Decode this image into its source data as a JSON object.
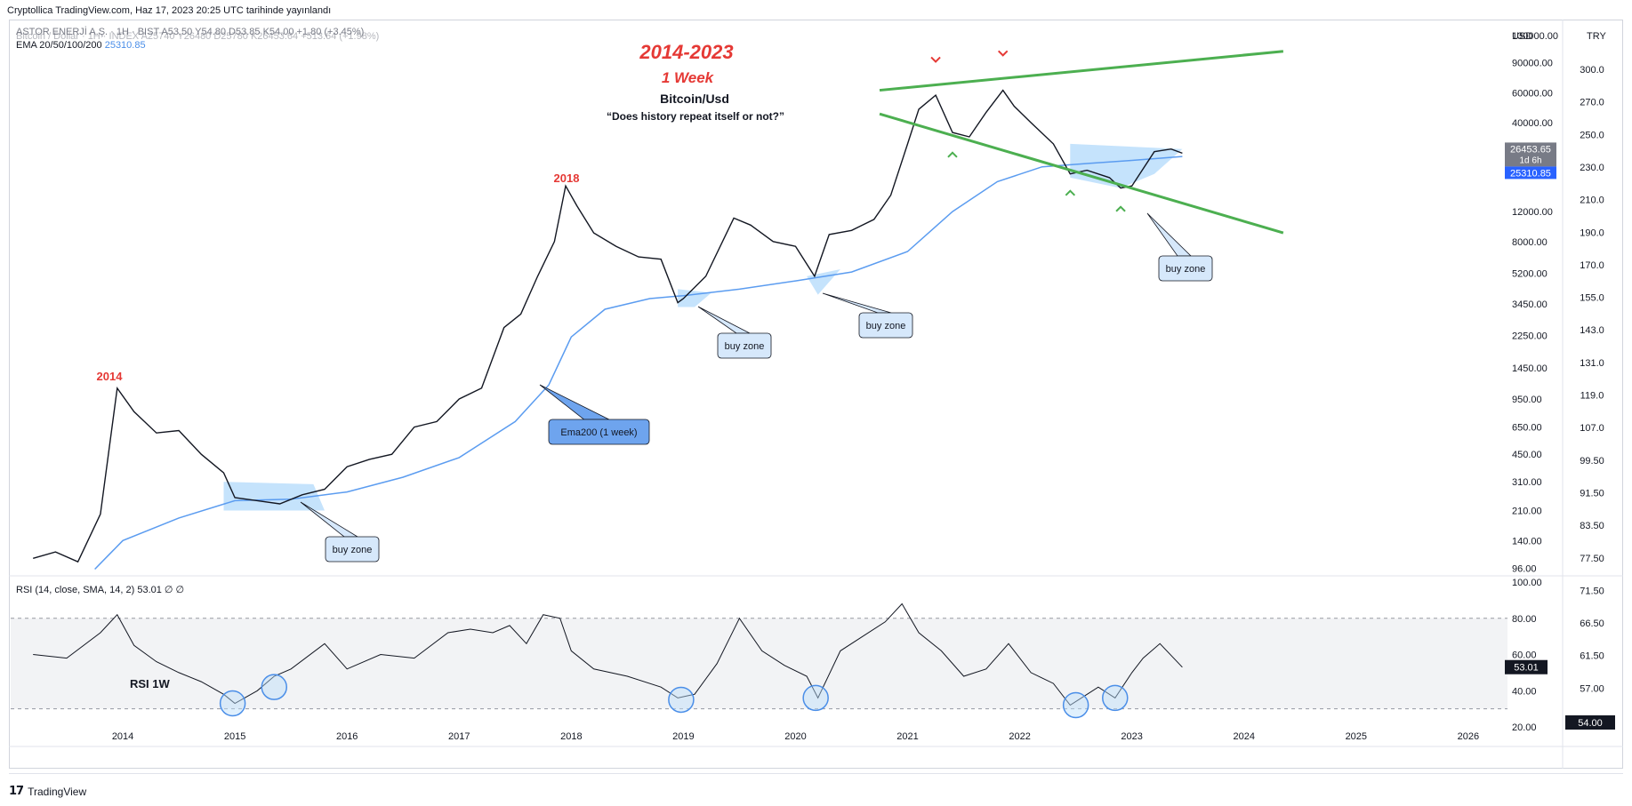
{
  "header": {
    "published": "Cryptollica TradingView.com, Haz 17, 2023 20:25 UTC tarihinde yayınlandı",
    "symbol_line": "ASTOR ENERJİ A.Ş. · 1H · BIST  A53.50  Y54.80  D53.85  K54.00  +1.80 (+3.45%)",
    "symbol_line_overlay": "Bitcoin / Dollar · 1H · INDEX  A25740  Y26480  D25780  K26453.64  +513.64 (+1.98%)",
    "ema_label": "EMA 20/50/100/200",
    "ema_value": "25310.85"
  },
  "annotations": {
    "title_years": "2014-2023",
    "title_period": "1 Week",
    "title_pair": "Bitcoin/Usd",
    "title_question": "“Does history repeat itself or not?”",
    "peak_2014": "2014",
    "peak_2018": "2018",
    "ema_callout": "Ema200 (1 week)",
    "buy_zone": "buy zone",
    "rsi_label": "RSI 1W"
  },
  "rsi_legend": "RSI (14, close, SMA, 14, 2)  53.01  ∅  ∅",
  "footer": {
    "brand": "TradingView"
  },
  "colors": {
    "accent_red": "#e53935",
    "trend_green": "#4caf50",
    "ema_blue": "#5b9cf0",
    "zone_fill": "#bbdefb",
    "candle": "#131722"
  },
  "chart_data": [
    {
      "type": "line",
      "series": [
        {
          "name": "BTC/USD weekly close",
          "x": [
            2013.2,
            2013.4,
            2013.6,
            2013.8,
            2013.95,
            2014.1,
            2014.3,
            2014.5,
            2014.7,
            2014.9,
            2015.0,
            2015.2,
            2015.4,
            2015.6,
            2015.8,
            2016.0,
            2016.2,
            2016.4,
            2016.6,
            2016.8,
            2017.0,
            2017.2,
            2017.4,
            2017.55,
            2017.7,
            2017.85,
            2017.95,
            2018.05,
            2018.2,
            2018.4,
            2018.6,
            2018.8,
            2018.95,
            2019.0,
            2019.2,
            2019.45,
            2019.6,
            2019.8,
            2020.0,
            2020.17,
            2020.3,
            2020.5,
            2020.7,
            2020.85,
            2021.0,
            2021.1,
            2021.25,
            2021.4,
            2021.55,
            2021.7,
            2021.85,
            2021.95,
            2022.1,
            2022.3,
            2022.45,
            2022.6,
            2022.8,
            2022.9,
            2023.0,
            2023.2,
            2023.35,
            2023.45
          ],
          "values": [
            110,
            120,
            105,
            200,
            1100,
            800,
            600,
            620,
            450,
            350,
            250,
            240,
            230,
            260,
            280,
            380,
            420,
            450,
            650,
            700,
            950,
            1100,
            2500,
            3000,
            5000,
            8000,
            17000,
            13000,
            9000,
            7500,
            6500,
            6300,
            3500,
            3700,
            5000,
            11000,
            10000,
            8000,
            7500,
            5000,
            8800,
            9300,
            10800,
            15000,
            30000,
            48000,
            58000,
            35000,
            33000,
            46000,
            62000,
            50000,
            40000,
            30000,
            20000,
            21000,
            19000,
            16500,
            17000,
            27000,
            28000,
            26453
          ],
          "ylim": [
            90,
            130000
          ]
        },
        {
          "name": "EMA200 (1 week)",
          "x": [
            2013.75,
            2014.0,
            2014.5,
            2015.0,
            2015.5,
            2016.0,
            2016.5,
            2017.0,
            2017.5,
            2017.8,
            2018.0,
            2018.3,
            2018.7,
            2019.0,
            2019.5,
            2020.0,
            2020.5,
            2021.0,
            2021.4,
            2021.8,
            2022.2,
            2022.6,
            2023.0,
            2023.45
          ],
          "values": [
            95,
            140,
            190,
            240,
            245,
            270,
            330,
            430,
            700,
            1150,
            2200,
            3200,
            3700,
            3850,
            4200,
            4700,
            5300,
            7000,
            12000,
            18000,
            22000,
            23000,
            24000,
            25310
          ]
        }
      ],
      "x_ticks": [
        "2014",
        "2015",
        "2016",
        "2017",
        "2018",
        "2019",
        "2020",
        "2021",
        "2022",
        "2023",
        "2024",
        "2025",
        "2026"
      ],
      "y_ticks_usd": [
        "130000.00",
        "90000.00",
        "60000.00",
        "40000.00",
        "25310.85",
        "12000.00",
        "8000.00",
        "5200.00",
        "3450.00",
        "2250.00",
        "1450.00",
        "950.00",
        "650.00",
        "450.00",
        "310.00",
        "210.00",
        "140.00",
        "96.00"
      ],
      "y_ticks_try": [
        "300.0",
        "270.0",
        "250.0",
        "230.0",
        "210.0",
        "190.0",
        "170.0",
        "155.0",
        "143.0",
        "131.0",
        "119.0",
        "107.0",
        "99.50",
        "91.50",
        "83.50",
        "77.50",
        "71.50",
        "66.50",
        "61.50",
        "57.00",
        "54.00"
      ],
      "yscale": "log",
      "y_axis_label": "USD",
      "y2_axis_label": "TRY",
      "last_price": "26453.65",
      "last_price_countdown": "1d 6h",
      "ema_last": "25310.85",
      "last_try": "54.00"
    },
    {
      "type": "line",
      "series": [
        {
          "name": "RSI (14, close, SMA, 14, 2)",
          "x": [
            2013.2,
            2013.5,
            2013.8,
            2013.95,
            2014.1,
            2014.3,
            2014.5,
            2014.7,
            2014.9,
            2015.0,
            2015.2,
            2015.35,
            2015.5,
            2015.8,
            2016.0,
            2016.3,
            2016.6,
            2016.9,
            2017.1,
            2017.3,
            2017.45,
            2017.6,
            2017.75,
            2017.9,
            2018.0,
            2018.2,
            2018.5,
            2018.8,
            2018.95,
            2019.1,
            2019.3,
            2019.5,
            2019.7,
            2019.9,
            2020.1,
            2020.2,
            2020.4,
            2020.6,
            2020.8,
            2020.95,
            2021.1,
            2021.3,
            2021.5,
            2021.7,
            2021.9,
            2022.1,
            2022.3,
            2022.45,
            2022.55,
            2022.7,
            2022.85,
            2023.0,
            2023.1,
            2023.25,
            2023.45
          ],
          "values": [
            60,
            58,
            72,
            82,
            65,
            56,
            50,
            45,
            38,
            33,
            40,
            48,
            52,
            66,
            52,
            60,
            58,
            72,
            74,
            72,
            76,
            66,
            82,
            80,
            62,
            52,
            48,
            42,
            36,
            38,
            55,
            80,
            62,
            54,
            48,
            36,
            62,
            70,
            78,
            88,
            72,
            62,
            48,
            52,
            66,
            50,
            44,
            32,
            36,
            42,
            36,
            50,
            58,
            66,
            53
          ],
          "ylim": [
            20,
            100
          ],
          "overbought": 80,
          "oversold": 30
        }
      ],
      "y_ticks": [
        "100.00",
        "80.00",
        "60.00",
        "40.00",
        "20.00"
      ],
      "last_value": "53.01"
    }
  ]
}
